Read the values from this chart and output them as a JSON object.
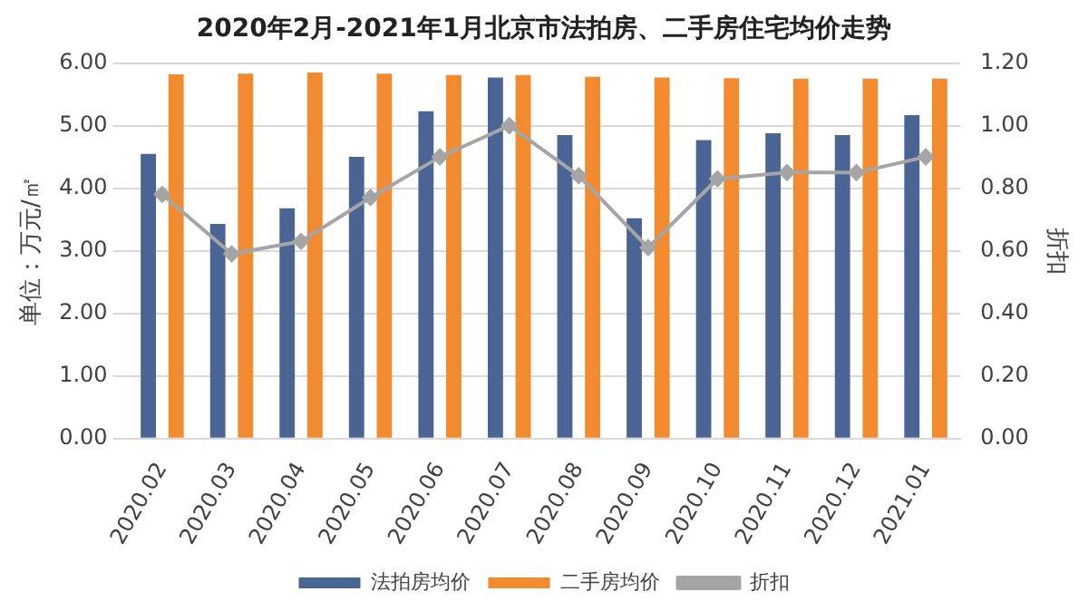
{
  "chart_data": {
    "type": "bar",
    "title": "2020年2月-2021年1月北京市法拍房、二手房住宅均价走势",
    "ylabel": "单位：万元/㎡",
    "y2label": "折扣",
    "categories": [
      "2020.02",
      "2020.03",
      "2020.04",
      "2020.05",
      "2020.06",
      "2020.07",
      "2020.08",
      "2020.09",
      "2020.10",
      "2020.11",
      "2020.12",
      "2021.01"
    ],
    "series": [
      {
        "name": "法拍房均价",
        "color": "#4a6594",
        "values": [
          4.55,
          3.43,
          3.68,
          4.5,
          5.23,
          5.77,
          4.85,
          3.52,
          4.77,
          4.88,
          4.85,
          5.17
        ]
      },
      {
        "name": "二手房均价",
        "color": "#f28a30",
        "values": [
          5.82,
          5.83,
          5.85,
          5.83,
          5.81,
          5.81,
          5.78,
          5.77,
          5.76,
          5.75,
          5.75,
          5.75
        ]
      },
      {
        "name": "折扣",
        "type": "line",
        "axis": "y2",
        "color": "#a5a5a5",
        "marker": "diamond",
        "values": [
          0.78,
          0.59,
          0.63,
          0.77,
          0.9,
          1.0,
          0.84,
          0.61,
          0.83,
          0.85,
          0.85,
          0.9
        ]
      }
    ],
    "ylim": [
      0,
      6
    ],
    "yticks": [
      {
        "value": 0,
        "label": "0.00"
      },
      {
        "value": 1,
        "label": "1.00"
      },
      {
        "value": 2,
        "label": "2.00"
      },
      {
        "value": 3,
        "label": "3.00"
      },
      {
        "value": 4,
        "label": "4.00"
      },
      {
        "value": 5,
        "label": "5.00"
      },
      {
        "value": 6,
        "label": "6.00"
      }
    ],
    "y2lim": [
      0,
      1.2
    ],
    "y2ticks": [
      {
        "value": 0,
        "label": "0.00"
      },
      {
        "value": 0.2,
        "label": "0.20"
      },
      {
        "value": 0.4,
        "label": "0.40"
      },
      {
        "value": 0.6,
        "label": "0.60"
      },
      {
        "value": 0.8,
        "label": "0.80"
      },
      {
        "value": 1.0,
        "label": "1.00"
      },
      {
        "value": 1.2,
        "label": "1.20"
      }
    ],
    "grid": "y",
    "legend": "bottom"
  }
}
